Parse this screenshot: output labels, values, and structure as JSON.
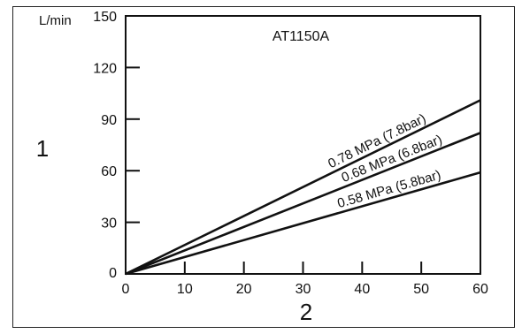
{
  "chart_data": {
    "type": "line",
    "title": "AT1150A",
    "y_unit_label": "L/min",
    "ylabel": "1",
    "xlabel": "2",
    "xlim": [
      0,
      60
    ],
    "ylim": [
      0,
      150
    ],
    "x_ticks": [
      0,
      10,
      20,
      30,
      40,
      50,
      60
    ],
    "y_ticks": [
      0,
      30,
      60,
      90,
      120,
      150
    ],
    "grid": false,
    "series": [
      {
        "name": "0.78 MPa (7.8bar)",
        "x": [
          0,
          60
        ],
        "y": [
          0,
          101
        ]
      },
      {
        "name": "0.68 MPa (6.8bar)",
        "x": [
          0,
          60
        ],
        "y": [
          0,
          82
        ]
      },
      {
        "name": "0.58 MPa (5.8bar)",
        "x": [
          0,
          60
        ],
        "y": [
          0,
          59
        ]
      }
    ]
  }
}
